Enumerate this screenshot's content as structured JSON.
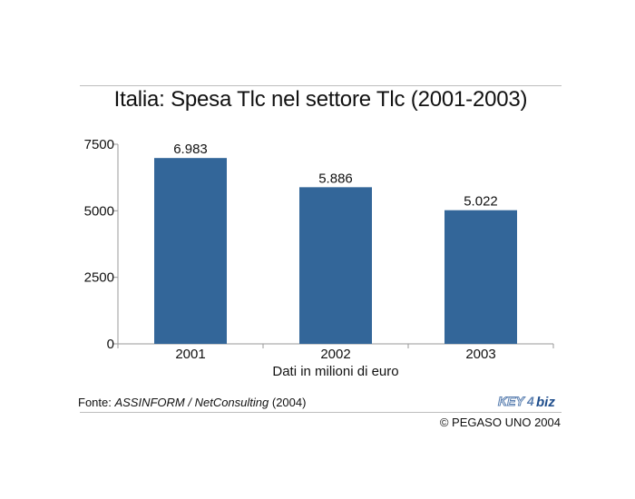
{
  "title": "Italia: Spesa Tlc nel settore Tlc (2001-2003)",
  "source": {
    "prefix": "Fonte: ",
    "name": "ASSINFORM / NetConsulting",
    "year": " (2004)"
  },
  "copyright": "© PEGASO UNO 2004",
  "logo": {
    "text_a": "KEY",
    "text_b": "4",
    "text_c": "biz"
  },
  "colors": {
    "bar": "#336699",
    "axis": "#999999"
  },
  "chart_data": {
    "type": "bar",
    "categories": [
      "2001",
      "2002",
      "2003"
    ],
    "values": [
      6983,
      5886,
      5022
    ],
    "data_labels": [
      "6.983",
      "5.886",
      "5.022"
    ],
    "yticks": [
      0,
      2500,
      5000,
      7500
    ],
    "ylim": [
      0,
      7500
    ],
    "xlabel": "Dati in milioni di euro",
    "ylabel": "",
    "grid": false,
    "legend": "none"
  }
}
